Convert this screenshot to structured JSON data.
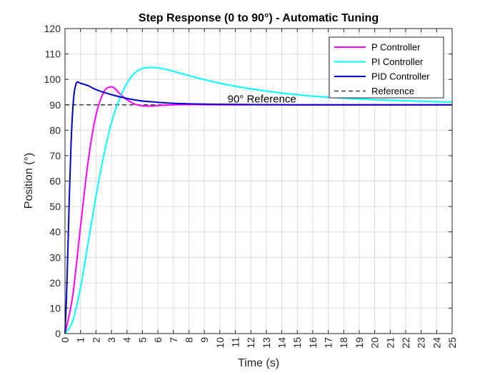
{
  "chart_data": {
    "type": "line",
    "title": "Step Response (0 to 90°) - Automatic Tuning",
    "xlabel": "Time (s)",
    "ylabel": "Position (°)",
    "xlim": [
      0,
      25
    ],
    "ylim": [
      0,
      120
    ],
    "xticks": [
      0,
      1,
      2,
      3,
      4,
      5,
      6,
      7,
      8,
      9,
      10,
      11,
      12,
      13,
      14,
      15,
      16,
      17,
      18,
      19,
      20,
      21,
      22,
      23,
      24,
      25
    ],
    "xtick_labels": [
      "0",
      "1",
      "2",
      "3",
      "4",
      "5",
      "6",
      "7",
      "8",
      "9",
      "10",
      "11",
      "12",
      "13",
      "14",
      "15",
      "16",
      "17",
      "18",
      "19",
      "20",
      "21",
      "22",
      "23",
      "24",
      "25"
    ],
    "yticks": [
      0,
      10,
      20,
      30,
      40,
      50,
      60,
      70,
      80,
      90,
      100,
      110,
      120
    ],
    "ytick_labels": [
      "0",
      "10",
      "20",
      "30",
      "40",
      "50",
      "60",
      "70",
      "80",
      "90",
      "100",
      "110",
      "120"
    ],
    "grid": true,
    "legend_position": "top-right",
    "annotation": {
      "text": "90° Reference",
      "x": 10.5,
      "y": 92
    },
    "series": [
      {
        "name": "P Controller",
        "color": "#ff00ff",
        "style": "solid",
        "x": [
          0,
          0.5,
          1.0,
          1.5,
          2.0,
          2.5,
          2.9,
          3.2,
          3.6,
          4.0,
          4.5,
          5.0,
          5.5,
          6.0,
          7.0,
          8.0,
          10,
          15,
          25
        ],
        "y": [
          0,
          15,
          42,
          68,
          86,
          95,
          97,
          96.5,
          94,
          92,
          90.3,
          89.6,
          89.5,
          89.7,
          90.0,
          90.1,
          90.0,
          90.0,
          90.0
        ]
      },
      {
        "name": "PI Controller",
        "color": "#00ffff",
        "style": "solid",
        "x": [
          0,
          0.5,
          1.0,
          1.5,
          2.0,
          2.5,
          3.0,
          3.5,
          4.0,
          4.5,
          5.0,
          5.5,
          6.0,
          6.5,
          7.0,
          8.0,
          9.0,
          10,
          11,
          12,
          13,
          14,
          15,
          16,
          17,
          18,
          19,
          20,
          21,
          22,
          23,
          24,
          25
        ],
        "y": [
          0,
          5,
          18,
          36,
          54,
          70,
          83,
          92,
          98.5,
          102.5,
          104.3,
          104.7,
          104.5,
          104.0,
          103.2,
          101.5,
          99.9,
          98.5,
          97.3,
          96.3,
          95.4,
          94.6,
          94.0,
          93.4,
          93.0,
          92.6,
          92.3,
          92.0,
          91.8,
          91.6,
          91.4,
          91.2,
          91.1
        ]
      },
      {
        "name": "PID Controller",
        "color": "#0000cc",
        "style": "solid",
        "x": [
          0,
          0.1,
          0.2,
          0.3,
          0.4,
          0.5,
          0.6,
          0.7,
          0.8,
          0.9,
          1.0,
          1.5,
          2.0,
          3.0,
          4.0,
          5.0,
          6.0,
          7.0,
          8.0,
          10,
          12,
          15,
          20,
          25
        ],
        "y": [
          0,
          15,
          36,
          58,
          76,
          88,
          95,
          98,
          99,
          98.8,
          98.5,
          97.5,
          96,
          94,
          92.5,
          91.5,
          91,
          90.6,
          90.4,
          90.2,
          90.1,
          90.0,
          90.0,
          90.0
        ]
      },
      {
        "name": "Reference",
        "color": "#404040",
        "style": "dashed",
        "x": [
          0,
          25
        ],
        "y": [
          90,
          90
        ]
      }
    ]
  }
}
